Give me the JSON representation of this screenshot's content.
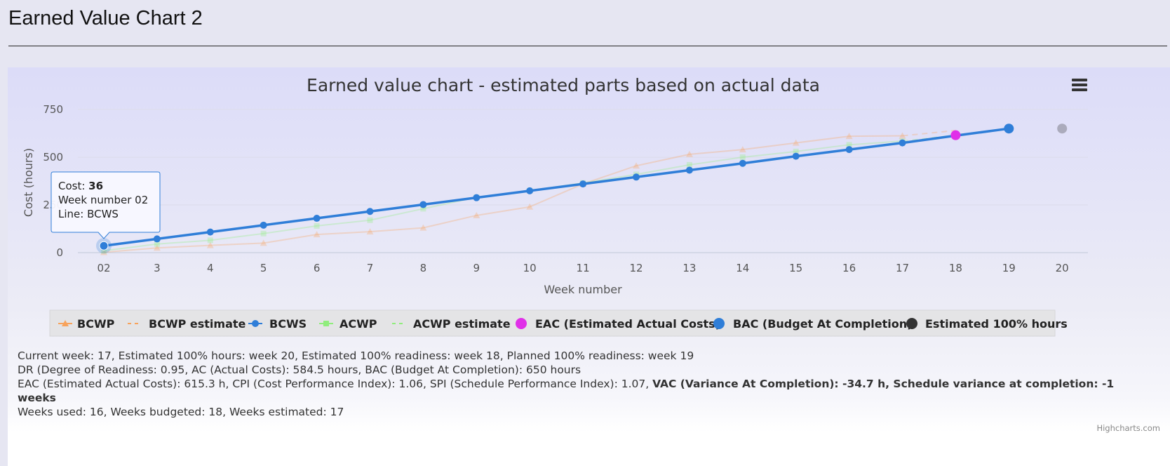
{
  "page": {
    "title": "Earned Value Chart 2"
  },
  "chart_data": {
    "type": "line",
    "title": "Earned value chart - estimated parts based on actual data",
    "xlabel": "Week number",
    "ylabel": "Cost (hours)",
    "categories": [
      "02",
      "3",
      "4",
      "5",
      "6",
      "7",
      "8",
      "9",
      "10",
      "11",
      "12",
      "13",
      "14",
      "15",
      "16",
      "17",
      "18",
      "19",
      "20"
    ],
    "yticks": [
      "0",
      "250",
      "500",
      "750"
    ],
    "ylim": [
      0,
      750
    ],
    "grid": true,
    "legend_position": "bottom",
    "series": [
      {
        "name": "BCWP",
        "color": "#f7a35c",
        "marker": "triangle",
        "dash": false,
        "faded": true,
        "values": [
          2,
          25,
          38,
          50,
          95,
          110,
          130,
          195,
          240,
          360,
          455,
          515,
          540,
          575,
          610,
          612,
          null,
          null,
          null
        ]
      },
      {
        "name": "BCWP estimate",
        "color": "#f7a35c",
        "marker": "none",
        "dash": true,
        "faded": true,
        "values": [
          null,
          null,
          null,
          null,
          null,
          null,
          null,
          null,
          null,
          null,
          null,
          null,
          null,
          null,
          null,
          612,
          640,
          null,
          null
        ]
      },
      {
        "name": "BCWS",
        "color": "#2f7ed8",
        "marker": "circle",
        "dash": false,
        "faded": false,
        "values": [
          36,
          72,
          108,
          144,
          180,
          216,
          252,
          288,
          324,
          360,
          396,
          432,
          468,
          505,
          540,
          575,
          613,
          650,
          null
        ]
      },
      {
        "name": "ACWP",
        "color": "#90ed7d",
        "marker": "square",
        "dash": false,
        "faded": true,
        "values": [
          10,
          45,
          65,
          100,
          140,
          170,
          230,
          290,
          325,
          365,
          410,
          460,
          500,
          530,
          565,
          584.5,
          null,
          null,
          null
        ]
      },
      {
        "name": "ACWP estimate",
        "color": "#90ed7d",
        "marker": "none",
        "dash": true,
        "faded": true,
        "values": [
          null,
          null,
          null,
          null,
          null,
          null,
          null,
          null,
          null,
          null,
          null,
          null,
          null,
          null,
          null,
          584.5,
          615.3,
          null,
          null
        ]
      },
      {
        "name": "EAC (Estimated Actual Costs)",
        "color": "#e030e8",
        "marker": "big-circle",
        "dash": false,
        "faded": false,
        "values": [
          null,
          null,
          null,
          null,
          null,
          null,
          null,
          null,
          null,
          null,
          null,
          null,
          null,
          null,
          null,
          null,
          615.3,
          null,
          null
        ]
      },
      {
        "name": "BAC (Budget At Completion)",
        "color": "#2f7ed8",
        "marker": "big-circle",
        "dash": false,
        "faded": false,
        "values": [
          null,
          null,
          null,
          null,
          null,
          null,
          null,
          null,
          null,
          null,
          null,
          null,
          null,
          null,
          null,
          null,
          null,
          650,
          null
        ]
      },
      {
        "name": "Estimated 100% hours",
        "color": "#333333",
        "marker": "big-circle",
        "dash": false,
        "faded": true,
        "values": [
          null,
          null,
          null,
          null,
          null,
          null,
          null,
          null,
          null,
          null,
          null,
          null,
          null,
          null,
          null,
          null,
          null,
          null,
          650
        ]
      }
    ],
    "tooltip": {
      "cost_label": "Cost: ",
      "cost_value": "36",
      "week_line": "Week number 02",
      "series_line": "Line: BCWS",
      "series_index": 2,
      "point_index": 0
    }
  },
  "info": {
    "line1": "Current week: 17, Estimated 100% hours: week 20, Estimated 100% readiness: week 18, Planned 100% readiness: week 19",
    "line2": "DR (Degree of Readiness: 0.95, AC (Actual Costs): 584.5 hours, BAC (Budget At Completion): 650 hours",
    "line3_normal": "EAC (Estimated Actual Costs): 615.3 h, CPI (Cost Performance Index): 1.06, SPI (Schedule Performance Index): 1.07, ",
    "line3_bold": "VAC (Variance At Completion): -34.7 h, Schedule variance at completion: -1 weeks",
    "line4": "Weeks used: 16, Weeks budgeted: 18, Weeks estimated: 17"
  },
  "credits": "Highcharts.com"
}
